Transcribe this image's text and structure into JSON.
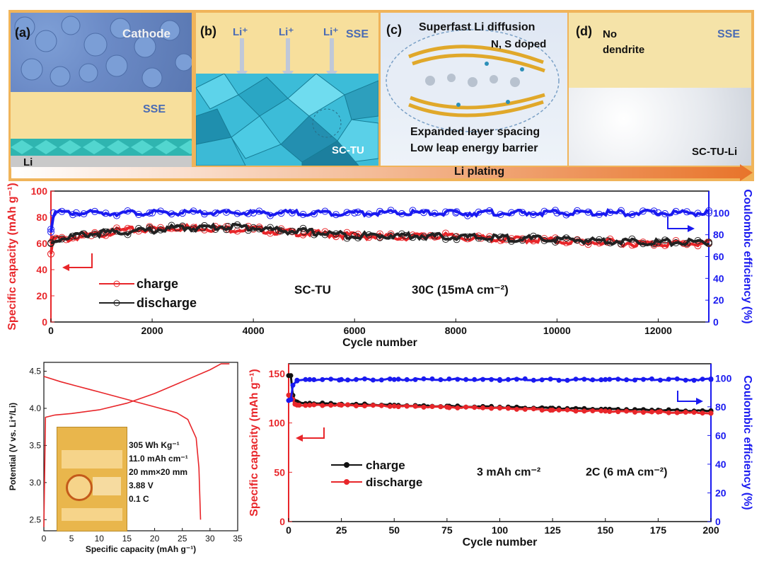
{
  "schematic": {
    "panels": [
      {
        "label": "(a)",
        "texts": [
          "Cathode",
          "SSE",
          "Li"
        ]
      },
      {
        "label": "(b)",
        "texts": [
          "Li⁺",
          "Li⁺",
          "Li⁺",
          "SSE",
          "SC-TU"
        ]
      },
      {
        "label": "(c)",
        "texts": [
          "Superfast Li diffusion",
          "N, S doped",
          "Expanded layer spacing",
          "Low leap energy barrier"
        ]
      },
      {
        "label": "(d)",
        "texts": [
          "No",
          "dendrite",
          "SSE",
          "SC-TU-Li"
        ]
      }
    ],
    "arrow_text": "Li plating"
  },
  "chart_data": [
    {
      "type": "scatter",
      "xlabel": "Cycle number",
      "ylabel": "Specific capacity (mAh g⁻¹)",
      "y2label": "Coulombic efficiency (%)",
      "xlim": [
        0,
        13000
      ],
      "ylim": [
        0,
        100
      ],
      "y2lim": [
        0,
        120
      ],
      "xticks": [
        0,
        2000,
        4000,
        6000,
        8000,
        10000,
        12000
      ],
      "yticks": [
        0,
        20,
        40,
        60,
        80,
        100
      ],
      "y2ticks": [
        0,
        20,
        40,
        60,
        80,
        100
      ],
      "annotations": [
        "SC-TU",
        "30C  (15mA cm⁻²)"
      ],
      "legend_position": "left",
      "series": [
        {
          "name": "charge",
          "color": "#e8262a",
          "points": [
            [
              0,
              52
            ],
            [
              30,
              62
            ],
            [
              100,
              64
            ],
            [
              300,
              63
            ],
            [
              500,
              65
            ],
            [
              800,
              66
            ],
            [
              1000,
              67
            ],
            [
              1200,
              69
            ],
            [
              1500,
              70
            ],
            [
              2000,
              71
            ],
            [
              2500,
              72
            ],
            [
              3000,
              72
            ],
            [
              3500,
              71
            ],
            [
              4000,
              71
            ],
            [
              4500,
              69
            ],
            [
              5000,
              68
            ],
            [
              5500,
              67
            ],
            [
              6000,
              66
            ],
            [
              6500,
              65
            ],
            [
              7000,
              65
            ],
            [
              7500,
              66
            ],
            [
              8000,
              65
            ],
            [
              8500,
              64
            ],
            [
              9000,
              63
            ],
            [
              9500,
              63
            ],
            [
              10000,
              62
            ],
            [
              10500,
              61
            ],
            [
              11000,
              61
            ],
            [
              11500,
              60
            ],
            [
              12000,
              60
            ],
            [
              12500,
              60
            ],
            [
              13000,
              60
            ]
          ]
        },
        {
          "name": "discharge",
          "color": "#222222",
          "points": [
            [
              0,
              60
            ],
            [
              100,
              63
            ],
            [
              500,
              66
            ],
            [
              1000,
              68
            ],
            [
              2000,
              70
            ],
            [
              2500,
              72
            ],
            [
              3000,
              72
            ],
            [
              3500,
              73
            ],
            [
              4000,
              72
            ],
            [
              4500,
              70
            ],
            [
              5000,
              69
            ],
            [
              6000,
              66
            ],
            [
              7000,
              66
            ],
            [
              8000,
              65
            ],
            [
              9000,
              64
            ],
            [
              10000,
              63
            ],
            [
              11000,
              62
            ],
            [
              12000,
              61
            ],
            [
              13000,
              61
            ]
          ]
        },
        {
          "name": "Coulombic efficiency",
          "color": "#1a1af0",
          "axis": "right",
          "points": [
            [
              0,
              85
            ],
            [
              50,
              100
            ],
            [
              500,
              100
            ],
            [
              2000,
              100
            ],
            [
              4000,
              100
            ],
            [
              6000,
              100
            ],
            [
              8000,
              100
            ],
            [
              10000,
              100
            ],
            [
              12000,
              100
            ],
            [
              13000,
              100
            ]
          ]
        }
      ]
    },
    {
      "type": "line",
      "xlabel": "Specific capacity (mAh g⁻¹)",
      "ylabel": "Potential (V vs. Li⁺/Li)",
      "xlim": [
        0,
        35
      ],
      "ylim": [
        2.35,
        4.62
      ],
      "xticks": [
        0,
        5,
        10,
        15,
        20,
        25,
        30,
        35
      ],
      "yticks": [
        2.5,
        3.0,
        3.5,
        4.0,
        4.5
      ],
      "inset_text": [
        "305 Wh Kg⁻¹",
        "11.0 mAh cm⁻¹",
        "20 mm×20 mm",
        "3.88 V",
        "0.1 C"
      ],
      "series": [
        {
          "name": "charge",
          "color": "#e8262a",
          "points": [
            [
              0,
              2.4
            ],
            [
              0.3,
              3.88
            ],
            [
              2,
              3.91
            ],
            [
              5,
              3.93
            ],
            [
              10,
              3.98
            ],
            [
              15,
              4.07
            ],
            [
              20,
              4.2
            ],
            [
              25,
              4.36
            ],
            [
              30,
              4.52
            ],
            [
              32,
              4.6
            ],
            [
              33.5,
              4.6
            ]
          ]
        },
        {
          "name": "discharge",
          "color": "#e8262a",
          "points": [
            [
              0,
              4.43
            ],
            [
              3,
              4.36
            ],
            [
              6,
              4.3
            ],
            [
              10,
              4.22
            ],
            [
              15,
              4.12
            ],
            [
              20,
              4.02
            ],
            [
              24,
              3.94
            ],
            [
              26,
              3.85
            ],
            [
              27.5,
              3.6
            ],
            [
              28,
              3.2
            ],
            [
              28.3,
              2.5
            ]
          ]
        }
      ]
    },
    {
      "type": "scatter",
      "xlabel": "Cycle number",
      "ylabel": "Specific capacity (mAh g⁻¹)",
      "y2label": "Coulombic efficiency (%)",
      "xlim": [
        0,
        200
      ],
      "ylim": [
        0,
        160
      ],
      "y2lim": [
        0,
        110
      ],
      "xticks": [
        0,
        25,
        50,
        75,
        100,
        125,
        150,
        175,
        200
      ],
      "yticks": [
        0,
        50,
        100,
        150
      ],
      "y2ticks": [
        0,
        20,
        40,
        60,
        80,
        100
      ],
      "annotations": [
        "3 mAh cm⁻²",
        "2C (6 mA cm⁻²)"
      ],
      "legend_position": "left",
      "series": [
        {
          "name": "charge",
          "color": "#111111",
          "points": [
            [
              1,
              148
            ],
            [
              2,
              128
            ],
            [
              3,
              122
            ],
            [
              5,
              120
            ],
            [
              10,
              120
            ],
            [
              25,
              119
            ],
            [
              50,
              118
            ],
            [
              75,
              117
            ],
            [
              100,
              116
            ],
            [
              125,
              115
            ],
            [
              150,
              114
            ],
            [
              175,
              113
            ],
            [
              200,
              112
            ]
          ]
        },
        {
          "name": "discharge",
          "color": "#e8262a",
          "points": [
            [
              1,
              128
            ],
            [
              2,
              124
            ],
            [
              3,
              119
            ],
            [
              5,
              118
            ],
            [
              10,
              118
            ],
            [
              25,
              118
            ],
            [
              50,
              117
            ],
            [
              75,
              116
            ],
            [
              100,
              115
            ],
            [
              125,
              113
            ],
            [
              150,
              112
            ],
            [
              175,
              111
            ],
            [
              200,
              110
            ]
          ]
        },
        {
          "name": "Coulombic efficiency",
          "color": "#1a1af0",
          "axis": "right",
          "points": [
            [
              1,
              85
            ],
            [
              2,
              95
            ],
            [
              4,
              98
            ],
            [
              10,
              99
            ],
            [
              25,
              99
            ],
            [
              50,
              99
            ],
            [
              100,
              99
            ],
            [
              150,
              99
            ],
            [
              200,
              99
            ]
          ]
        }
      ]
    }
  ]
}
